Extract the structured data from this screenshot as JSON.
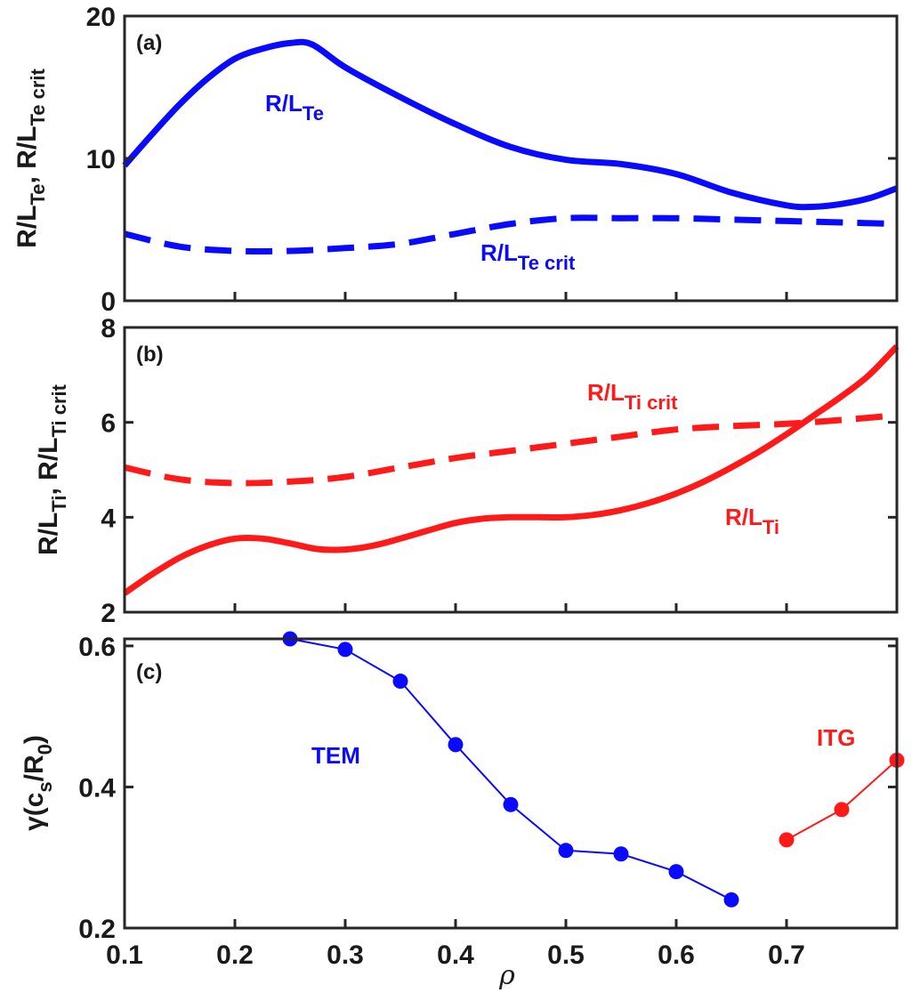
{
  "colors": {
    "blue": "#0a0aff",
    "red": "#ff1a1a",
    "axis": "#262626"
  },
  "xlabel": "ρ",
  "x_ticks": [
    "0.1",
    "0.2",
    "0.3",
    "0.4",
    "0.5",
    "0.6",
    "0.7"
  ],
  "chart_data": [
    {
      "panel": "(a)",
      "type": "line",
      "ylabel": {
        "part1": "R/L",
        "sub1": "Te",
        "sep": ", R/L",
        "sub2": "Te crit"
      },
      "xlim": [
        0.1,
        0.8
      ],
      "ylim": [
        0,
        20
      ],
      "y_ticks": [
        "0",
        "10",
        "20"
      ],
      "series": [
        {
          "name": "R/L",
          "name_sub": "Te",
          "style": "solid",
          "color": "#0a0aff",
          "x": [
            0.1,
            0.125,
            0.15,
            0.175,
            0.2,
            0.225,
            0.25,
            0.27,
            0.3,
            0.35,
            0.4,
            0.45,
            0.5,
            0.55,
            0.6,
            0.65,
            0.7,
            0.725,
            0.75,
            0.775,
            0.8
          ],
          "y": [
            9.5,
            11.7,
            13.8,
            15.6,
            17.0,
            17.7,
            18.1,
            18.0,
            16.4,
            14.3,
            12.4,
            10.8,
            9.9,
            9.6,
            8.9,
            7.6,
            6.7,
            6.6,
            6.8,
            7.2,
            7.9
          ]
        },
        {
          "name": "R/L",
          "name_sub": "Te crit",
          "style": "dashed",
          "color": "#0a0aff",
          "x": [
            0.1,
            0.15,
            0.2,
            0.25,
            0.3,
            0.35,
            0.4,
            0.45,
            0.5,
            0.55,
            0.6,
            0.65,
            0.7,
            0.75,
            0.8
          ],
          "y": [
            4.7,
            3.8,
            3.5,
            3.5,
            3.7,
            4.0,
            4.7,
            5.4,
            5.8,
            5.8,
            5.8,
            5.7,
            5.6,
            5.5,
            5.4
          ]
        }
      ]
    },
    {
      "panel": "(b)",
      "type": "line",
      "ylabel": {
        "part1": "R/L",
        "sub1": "Ti",
        "sep": ", R/L",
        "sub2": "Ti crit"
      },
      "xlim": [
        0.1,
        0.8
      ],
      "ylim": [
        2,
        8
      ],
      "y_ticks": [
        "2",
        "4",
        "6",
        "8"
      ],
      "series": [
        {
          "name": "R/L",
          "name_sub": "Ti crit",
          "style": "dashed",
          "color": "#ff1a1a",
          "x": [
            0.1,
            0.15,
            0.2,
            0.25,
            0.3,
            0.35,
            0.4,
            0.45,
            0.5,
            0.55,
            0.6,
            0.65,
            0.7,
            0.75,
            0.8
          ],
          "y": [
            5.05,
            4.8,
            4.72,
            4.75,
            4.85,
            5.05,
            5.25,
            5.4,
            5.55,
            5.7,
            5.85,
            5.92,
            5.97,
            6.05,
            6.15
          ]
        },
        {
          "name": "R/L",
          "name_sub": "Ti",
          "style": "solid",
          "color": "#ff1a1a",
          "x": [
            0.1,
            0.125,
            0.15,
            0.175,
            0.2,
            0.225,
            0.25,
            0.275,
            0.3,
            0.325,
            0.35,
            0.375,
            0.4,
            0.425,
            0.45,
            0.475,
            0.5,
            0.525,
            0.55,
            0.575,
            0.6,
            0.625,
            0.65,
            0.675,
            0.7,
            0.725,
            0.75,
            0.775,
            0.8
          ],
          "y": [
            2.4,
            2.8,
            3.15,
            3.4,
            3.55,
            3.55,
            3.45,
            3.33,
            3.32,
            3.4,
            3.55,
            3.72,
            3.88,
            3.97,
            4.0,
            4.0,
            4.0,
            4.05,
            4.15,
            4.3,
            4.5,
            4.75,
            5.05,
            5.38,
            5.75,
            6.15,
            6.55,
            7.0,
            7.6
          ]
        }
      ]
    },
    {
      "panel": "(c)",
      "type": "line",
      "ylabel": {
        "part1": "γ(c",
        "sub1": "s",
        "sep": "/R",
        "sub2": "0",
        "tail": ")"
      },
      "xlim": [
        0.1,
        0.8
      ],
      "ylim": [
        0.2,
        0.61
      ],
      "y_ticks": [
        "0.2",
        "0.4",
        "0.6"
      ],
      "series": [
        {
          "name": "TEM",
          "color": "#0a0aff",
          "markers": true,
          "x": [
            0.25,
            0.3,
            0.35,
            0.4,
            0.45,
            0.5,
            0.55,
            0.6,
            0.65
          ],
          "y": [
            0.61,
            0.595,
            0.55,
            0.46,
            0.375,
            0.31,
            0.305,
            0.28,
            0.24
          ]
        },
        {
          "name": "ITG",
          "color": "#ff1a1a",
          "markers": true,
          "x": [
            0.7,
            0.75,
            0.8
          ],
          "y": [
            0.325,
            0.368,
            0.438
          ]
        }
      ]
    }
  ]
}
